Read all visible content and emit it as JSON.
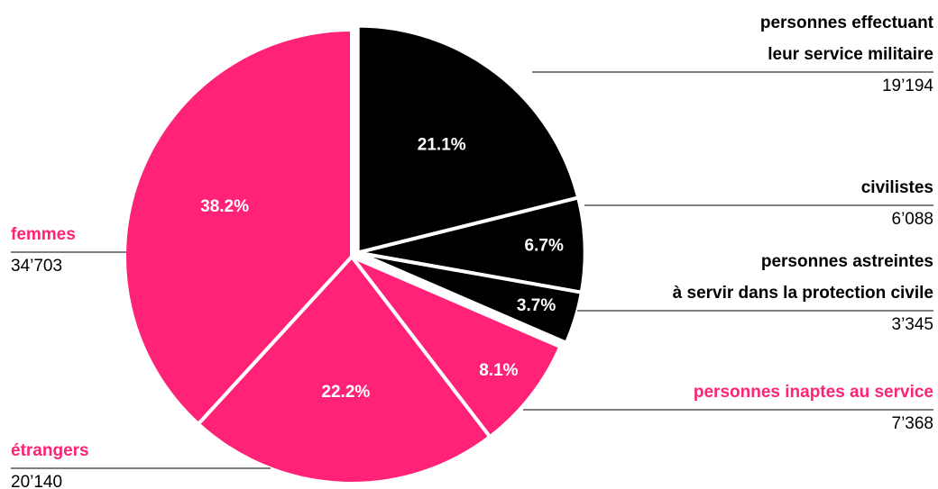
{
  "chart_data": {
    "type": "pie",
    "categories": [
      "personnes effectuant\nleur service militaire",
      "civilistes",
      "personnes astreintes\nà servir dans la protection civile",
      "personnes inaptes au service",
      "étrangers",
      "femmes"
    ],
    "values": [
      21.1,
      6.7,
      3.7,
      8.1,
      22.2,
      38.2
    ],
    "value_labels": [
      "21.1%",
      "6.7%",
      "3.7%",
      "8.1%",
      "22.2%",
      "38.2%"
    ],
    "counts": [
      {
        "value": 19194,
        "label": "19’194"
      },
      {
        "value": 6088,
        "label": "6’088"
      },
      {
        "value": 3345,
        "label": "3’345"
      },
      {
        "value": 7368,
        "label": "7’368"
      },
      {
        "value": 20140,
        "label": "20’140"
      },
      {
        "value": 34703,
        "label": "34’703"
      }
    ],
    "colors": [
      "#000000",
      "#000000",
      "#000000",
      "#ff2277",
      "#ff2277",
      "#ff2277"
    ],
    "explode": [
      true,
      true,
      true,
      false,
      false,
      false
    ]
  }
}
